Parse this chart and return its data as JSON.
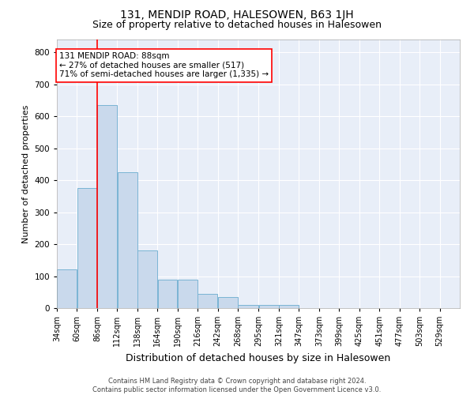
{
  "title": "131, MENDIP ROAD, HALESOWEN, B63 1JH",
  "subtitle": "Size of property relative to detached houses in Halesowen",
  "xlabel": "Distribution of detached houses by size in Halesowen",
  "ylabel": "Number of detached properties",
  "footer_line1": "Contains HM Land Registry data © Crown copyright and database right 2024.",
  "footer_line2": "Contains public sector information licensed under the Open Government Licence v3.0.",
  "bar_edges": [
    34,
    60,
    86,
    112,
    138,
    164,
    190,
    216,
    242,
    268,
    295,
    321,
    347,
    373,
    399,
    425,
    451,
    477,
    503,
    529,
    555
  ],
  "bar_heights": [
    120,
    375,
    635,
    425,
    180,
    90,
    90,
    45,
    35,
    10,
    10,
    10,
    0,
    0,
    0,
    0,
    0,
    0,
    0,
    0
  ],
  "bar_color": "#c9d9ec",
  "bar_edge_color": "#7ab4d4",
  "red_line_x": 86,
  "annotation_text": "131 MENDIP ROAD: 88sqm\n← 27% of detached houses are smaller (517)\n71% of semi-detached houses are larger (1,335) →",
  "ylim": [
    0,
    840
  ],
  "yticks": [
    0,
    100,
    200,
    300,
    400,
    500,
    600,
    700,
    800
  ],
  "bg_color": "#e8eef8",
  "title_fontsize": 10,
  "subtitle_fontsize": 9,
  "ylabel_fontsize": 8,
  "xlabel_fontsize": 9,
  "tick_label_fontsize": 7,
  "annotation_fontsize": 7.5,
  "footer_fontsize": 6
}
